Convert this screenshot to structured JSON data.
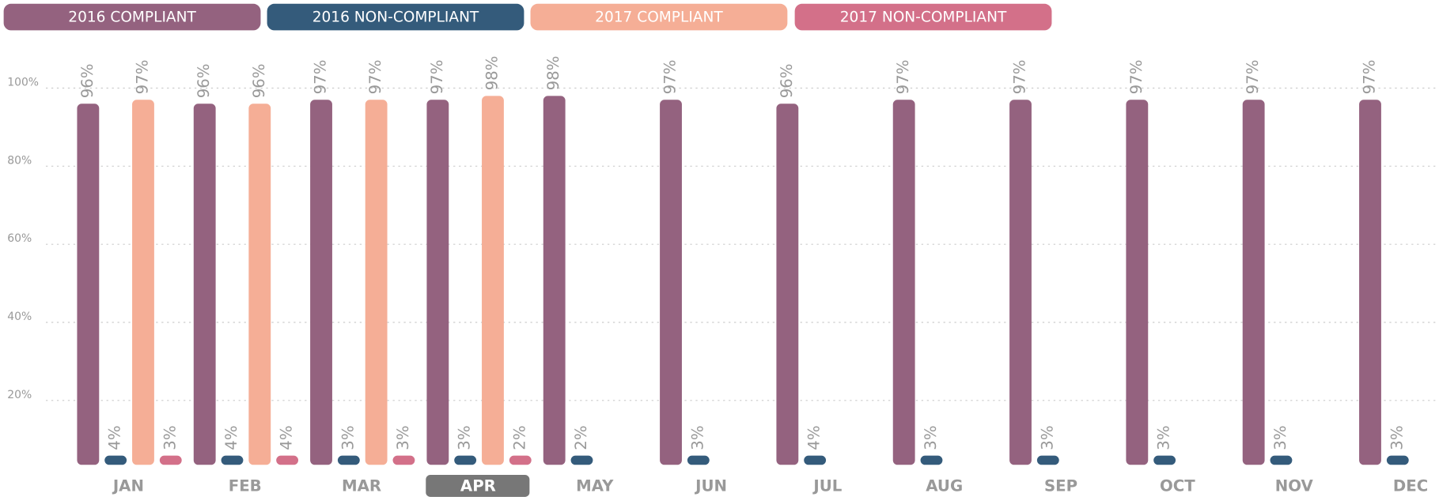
{
  "chart_data": {
    "type": "bar",
    "categories": [
      "JAN",
      "FEB",
      "MAR",
      "APR",
      "MAY",
      "JUN",
      "JUL",
      "AUG",
      "SEP",
      "OCT",
      "NOV",
      "DEC"
    ],
    "highlight_index": 3,
    "series": [
      {
        "name": "2016 COMPLIANT",
        "color": "#94627f",
        "values": [
          96,
          96,
          97,
          97,
          98,
          97,
          96,
          97,
          97,
          97,
          97,
          97
        ],
        "value_labels": [
          "96%",
          "96%",
          "97%",
          "97%",
          "98%",
          "97%",
          "96%",
          "97%",
          "97%",
          "97%",
          "97%",
          "97%"
        ]
      },
      {
        "name": "2016 NON-COMPLIANT",
        "color": "#345b7b",
        "values": [
          4,
          4,
          3,
          3,
          2,
          3,
          4,
          3,
          3,
          3,
          3,
          3
        ],
        "value_labels": [
          "4%",
          "4%",
          "3%",
          "3%",
          "2%",
          "3%",
          "4%",
          "3%",
          "3%",
          "3%",
          "3%",
          "3%"
        ]
      },
      {
        "name": "2017 COMPLIANT",
        "color": "#f5ae96",
        "values": [
          97,
          96,
          97,
          98,
          null,
          null,
          null,
          null,
          null,
          null,
          null,
          null
        ],
        "value_labels": [
          "97%",
          "96%",
          "97%",
          "98%",
          null,
          null,
          null,
          null,
          null,
          null,
          null,
          null
        ]
      },
      {
        "name": "2017 NON-COMPLIANT",
        "color": "#d37089",
        "values": [
          3,
          4,
          3,
          2,
          null,
          null,
          null,
          null,
          null,
          null,
          null,
          null
        ],
        "value_labels": [
          "3%",
          "4%",
          "3%",
          "2%",
          null,
          null,
          null,
          null,
          null,
          null,
          null,
          null
        ]
      }
    ],
    "ylim": [
      0,
      100
    ],
    "yticks": [
      {
        "value": 20,
        "label": "20%"
      },
      {
        "value": 40,
        "label": "40%"
      },
      {
        "value": 60,
        "label": "60%"
      },
      {
        "value": 80,
        "label": "80%"
      },
      {
        "value": 100,
        "label": "100%"
      }
    ],
    "grid": true
  }
}
